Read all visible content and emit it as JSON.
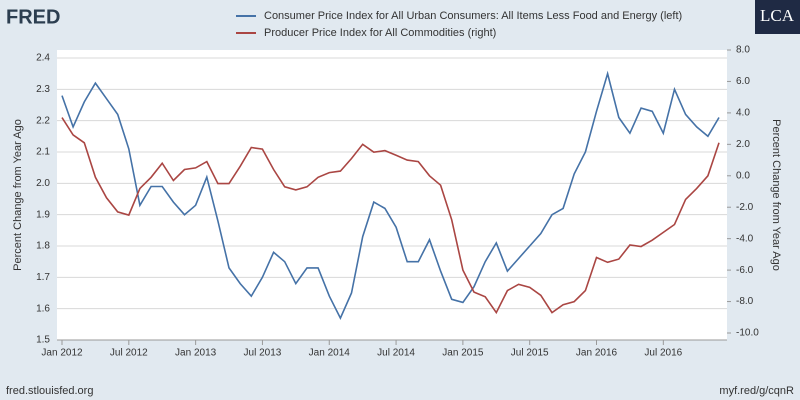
{
  "header": {
    "logo": "FRED",
    "brand": "LCA"
  },
  "footer": {
    "source": "fred.stlouisfed.org",
    "link": "myf.red/g/cqnR"
  },
  "chart_data": {
    "type": "line",
    "x": [
      "2012-01",
      "2012-02",
      "2012-03",
      "2012-04",
      "2012-05",
      "2012-06",
      "2012-07",
      "2012-08",
      "2012-09",
      "2012-10",
      "2012-11",
      "2012-12",
      "2013-01",
      "2013-02",
      "2013-03",
      "2013-04",
      "2013-05",
      "2013-06",
      "2013-07",
      "2013-08",
      "2013-09",
      "2013-10",
      "2013-11",
      "2013-12",
      "2014-01",
      "2014-02",
      "2014-03",
      "2014-04",
      "2014-05",
      "2014-06",
      "2014-07",
      "2014-08",
      "2014-09",
      "2014-10",
      "2014-11",
      "2014-12",
      "2015-01",
      "2015-02",
      "2015-03",
      "2015-04",
      "2015-05",
      "2015-06",
      "2015-07",
      "2015-08",
      "2015-09",
      "2015-10",
      "2015-11",
      "2015-12",
      "2016-01",
      "2016-02",
      "2016-03",
      "2016-04",
      "2016-05",
      "2016-06",
      "2016-07",
      "2016-08",
      "2016-09",
      "2016-10",
      "2016-11",
      "2016-12"
    ],
    "xticks": [
      {
        "value": "2012-01",
        "label": "Jan 2012"
      },
      {
        "value": "2012-07",
        "label": "Jul 2012"
      },
      {
        "value": "2013-01",
        "label": "Jan 2013"
      },
      {
        "value": "2013-07",
        "label": "Jul 2013"
      },
      {
        "value": "2014-01",
        "label": "Jan 2014"
      },
      {
        "value": "2014-07",
        "label": "Jul 2014"
      },
      {
        "value": "2015-01",
        "label": "Jan 2015"
      },
      {
        "value": "2015-07",
        "label": "Jul 2015"
      },
      {
        "value": "2016-01",
        "label": "Jan 2016"
      },
      {
        "value": "2016-07",
        "label": "Jul 2016"
      }
    ],
    "ylabel": "Percent Change from Year Ago",
    "y2label": "Percent Change from Year Ago",
    "ylim": [
      1.5,
      2.4
    ],
    "yticks": [
      1.5,
      1.6,
      1.7,
      1.8,
      1.9,
      {
        "value": 2.0,
        "label": "2.0"
      },
      2.1,
      2.2,
      2.3,
      2.4
    ],
    "y2lim": [
      -10,
      8
    ],
    "y2ticks": [
      {
        "value": -10,
        "label": "-10.0"
      },
      {
        "value": -8,
        "label": "-8.0"
      },
      {
        "value": -6,
        "label": "-6.0"
      },
      {
        "value": -4,
        "label": "-4.0"
      },
      {
        "value": -2,
        "label": "-2.0"
      },
      {
        "value": 0,
        "label": "0.0"
      },
      {
        "value": 2,
        "label": "2.0"
      },
      {
        "value": 4,
        "label": "4.0"
      },
      {
        "value": 6,
        "label": "6.0"
      },
      {
        "value": 8,
        "label": "8.0"
      }
    ],
    "grid": true,
    "series": [
      {
        "name": "Consumer Price Index for All Urban Consumers: All Items Less Food and Energy (left)",
        "color": "#4572a7",
        "axis": "y",
        "values": [
          2.28,
          2.18,
          2.26,
          2.32,
          2.27,
          2.22,
          2.11,
          1.93,
          1.99,
          1.99,
          1.94,
          1.9,
          1.93,
          2.02,
          1.88,
          1.73,
          1.68,
          1.64,
          1.7,
          1.78,
          1.75,
          1.68,
          1.73,
          1.73,
          1.64,
          1.57,
          1.65,
          1.83,
          1.94,
          1.92,
          1.86,
          1.75,
          1.75,
          1.82,
          1.72,
          1.63,
          1.62,
          1.67,
          1.75,
          1.81,
          1.72,
          1.76,
          1.8,
          1.84,
          1.9,
          1.92,
          2.03,
          2.1,
          2.23,
          2.35,
          2.21,
          2.16,
          2.24,
          2.23,
          2.16,
          2.3,
          2.22,
          2.18,
          2.15,
          2.21
        ]
      },
      {
        "name": "Producer Price Index for All Commodities (right)",
        "color": "#aa4643",
        "axis": "y2",
        "values": [
          3.7,
          2.6,
          2.1,
          -0.1,
          -1.4,
          -2.3,
          -2.5,
          -0.8,
          -0.1,
          0.8,
          -0.3,
          0.4,
          0.5,
          0.9,
          -0.5,
          -0.5,
          0.6,
          1.8,
          1.7,
          0.4,
          -0.7,
          -0.9,
          -0.7,
          -0.1,
          0.2,
          0.3,
          1.1,
          2.0,
          1.5,
          1.6,
          1.3,
          1.0,
          0.9,
          0.0,
          -0.6,
          -2.8,
          -6.0,
          -7.4,
          -7.7,
          -8.7,
          -7.3,
          -6.9,
          -7.1,
          -7.6,
          -8.7,
          -8.2,
          -8.0,
          -7.3,
          -5.2,
          -5.5,
          -5.3,
          -4.4,
          -4.5,
          -4.1,
          -3.6,
          -3.1,
          -1.5,
          -0.8,
          0.0,
          2.1
        ]
      }
    ]
  }
}
